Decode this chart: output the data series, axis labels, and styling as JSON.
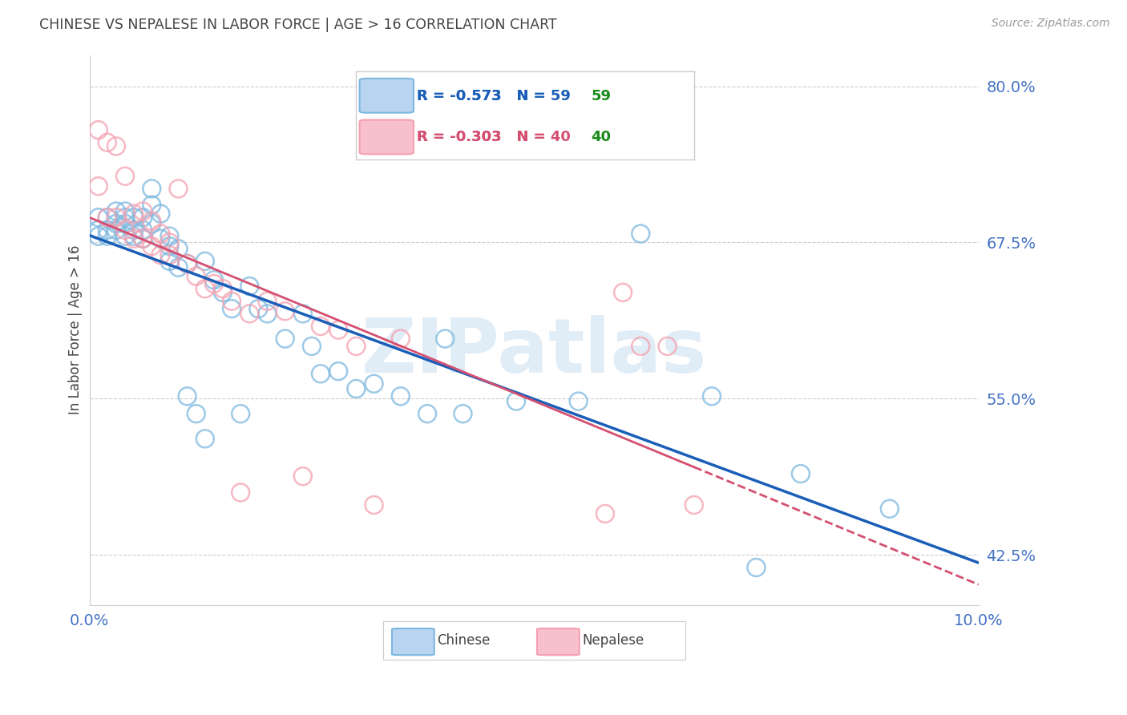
{
  "title": "CHINESE VS NEPALESE IN LABOR FORCE | AGE > 16 CORRELATION CHART",
  "source": "Source: ZipAtlas.com",
  "ylabel": "In Labor Force | Age > 16",
  "xlim": [
    0.0,
    0.1
  ],
  "ylim": [
    0.385,
    0.825
  ],
  "yticks": [
    0.425,
    0.55,
    0.675,
    0.8
  ],
  "ytick_labels": [
    "42.5%",
    "55.0%",
    "67.5%",
    "80.0%"
  ],
  "xtick_labels": [
    "0.0%",
    "10.0%"
  ],
  "xtick_pos": [
    0.0,
    0.1
  ],
  "chinese_R": -0.573,
  "chinese_N": 59,
  "nepalese_R": -0.303,
  "nepalese_N": 40,
  "chinese_color": "#7db8e0",
  "nepalese_color": "#f4a0b0",
  "chinese_line_color": "#1a5eb8",
  "nepalese_line_color": "#d45070",
  "grid_color": "#cccccc",
  "background_color": "#ffffff",
  "title_color": "#444444",
  "ytick_color": "#4472c4",
  "xtick_color": "#4472c4",
  "source_color": "#999999",
  "watermark": "ZIPatlas",
  "watermark_color": "#c8ddf0",
  "legend_box_color": "#cccccc",
  "legend_text_chinese_color": "#1a5eb8",
  "legend_text_nepalese_color": "#d45070",
  "legend_N_color": "#1a8a1a",
  "chinese_x": [
    0.001,
    0.001,
    0.001,
    0.002,
    0.002,
    0.002,
    0.003,
    0.003,
    0.003,
    0.004,
    0.004,
    0.004,
    0.004,
    0.005,
    0.005,
    0.005,
    0.006,
    0.006,
    0.006,
    0.007,
    0.007,
    0.007,
    0.008,
    0.008,
    0.009,
    0.009,
    0.009,
    0.01,
    0.01,
    0.011,
    0.011,
    0.012,
    0.013,
    0.013,
    0.014,
    0.015,
    0.016,
    0.017,
    0.018,
    0.019,
    0.02,
    0.022,
    0.024,
    0.025,
    0.026,
    0.028,
    0.03,
    0.032,
    0.035,
    0.038,
    0.04,
    0.042,
    0.048,
    0.055,
    0.062,
    0.07,
    0.075,
    0.08,
    0.09
  ],
  "chinese_y": [
    0.695,
    0.685,
    0.68,
    0.695,
    0.685,
    0.68,
    0.7,
    0.69,
    0.685,
    0.7,
    0.695,
    0.69,
    0.68,
    0.695,
    0.685,
    0.68,
    0.695,
    0.685,
    0.678,
    0.718,
    0.705,
    0.69,
    0.698,
    0.678,
    0.68,
    0.672,
    0.66,
    0.67,
    0.655,
    0.658,
    0.552,
    0.538,
    0.518,
    0.66,
    0.645,
    0.635,
    0.622,
    0.538,
    0.64,
    0.622,
    0.618,
    0.598,
    0.618,
    0.592,
    0.57,
    0.572,
    0.558,
    0.562,
    0.552,
    0.538,
    0.598,
    0.538,
    0.548,
    0.548,
    0.682,
    0.552,
    0.415,
    0.49,
    0.462
  ],
  "nepalese_x": [
    0.001,
    0.001,
    0.002,
    0.002,
    0.003,
    0.003,
    0.004,
    0.004,
    0.005,
    0.005,
    0.006,
    0.006,
    0.007,
    0.007,
    0.008,
    0.008,
    0.009,
    0.009,
    0.01,
    0.011,
    0.012,
    0.013,
    0.014,
    0.015,
    0.016,
    0.017,
    0.018,
    0.02,
    0.022,
    0.024,
    0.026,
    0.028,
    0.03,
    0.032,
    0.035,
    0.058,
    0.06,
    0.062,
    0.065,
    0.068
  ],
  "nepalese_y": [
    0.765,
    0.72,
    0.755,
    0.695,
    0.752,
    0.695,
    0.728,
    0.685,
    0.698,
    0.678,
    0.7,
    0.678,
    0.692,
    0.672,
    0.682,
    0.665,
    0.675,
    0.665,
    0.718,
    0.658,
    0.648,
    0.638,
    0.642,
    0.638,
    0.628,
    0.475,
    0.618,
    0.628,
    0.62,
    0.488,
    0.608,
    0.605,
    0.592,
    0.465,
    0.598,
    0.458,
    0.635,
    0.592,
    0.592,
    0.465
  ]
}
